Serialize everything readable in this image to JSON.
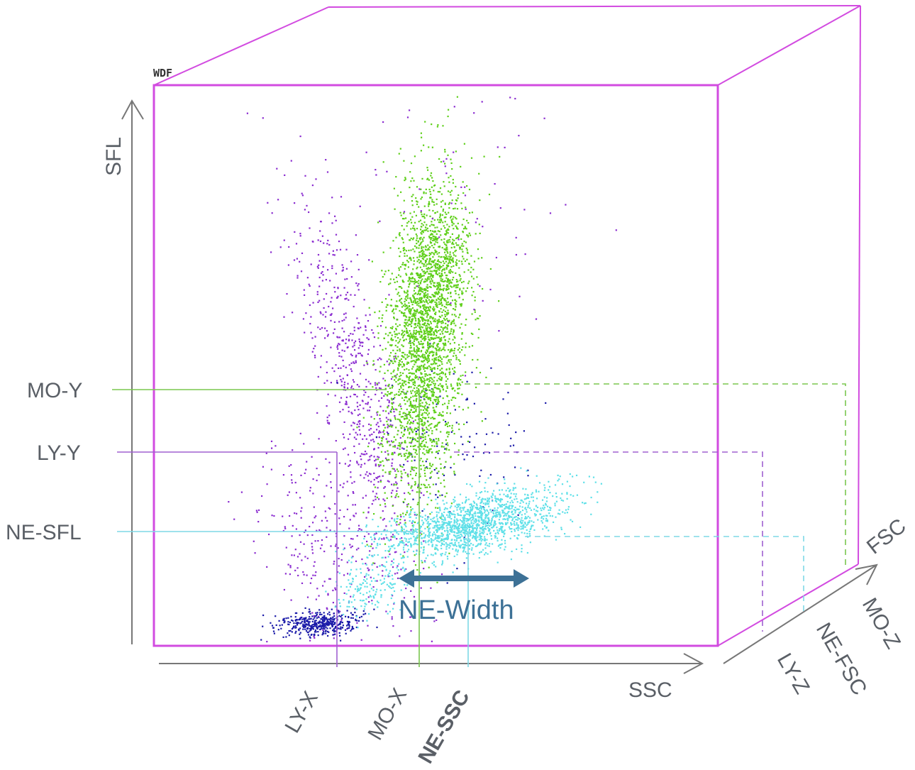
{
  "panel_label": "WDF",
  "axes": {
    "y": "SFL",
    "x": "SSC",
    "z": "FSC"
  },
  "y_markers": [
    "MO-Y",
    "LY-Y",
    "NE-SFL"
  ],
  "x_markers": [
    "LY-X",
    "MO-X",
    "NE-SSC"
  ],
  "z_markers": [
    "LY-Z",
    "NE-FSC",
    "MO-Z"
  ],
  "annotation": "NE-Width",
  "colors": {
    "cube": "#d24be0",
    "axis": "#777777",
    "label": "#5a5f66",
    "lymphocyte": "#1a1aa8",
    "monocyte_purple": "#8a2bd0",
    "mo_line": "#7ac74f",
    "green_cluster": "#5fcf1a",
    "neutrophil": "#5fe0e8",
    "ne_line": "#7fd8e6",
    "ly_line": "#a060d0",
    "ne_width_arrow": "#3d7196"
  }
}
